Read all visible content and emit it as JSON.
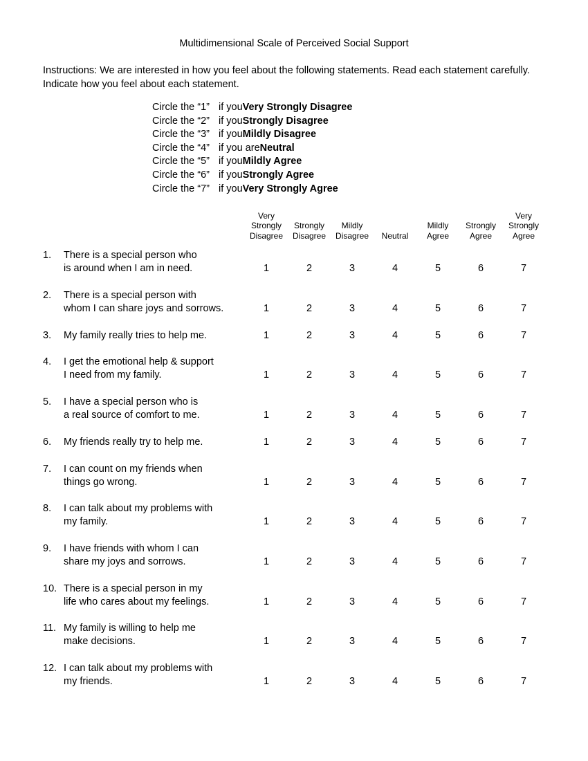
{
  "title": "Multidimensional Scale of Perceived Social Support",
  "instructions": "Instructions:  We are interested in how you feel about the following statements.  Read each statement carefully.   Indicate how you feel about each statement.",
  "legend": [
    {
      "left": "Circle the “1”",
      "mid": "if you ",
      "bold": "Very Strongly Disagree"
    },
    {
      "left": "Circle the “2”",
      "mid": "if you ",
      "bold": "Strongly Disagree"
    },
    {
      "left": "Circle the “3”",
      "mid": "if you ",
      "bold": "Mildly Disagree"
    },
    {
      "left": "Circle the “4”",
      "mid": "if you are ",
      "bold": "Neutral"
    },
    {
      "left": "Circle the “5”",
      "mid": "if you ",
      "bold": "Mildly Agree"
    },
    {
      "left": "Circle the “6”",
      "mid": "if you ",
      "bold": "Strongly Agree"
    },
    {
      "left": "Circle the “7”",
      "mid": "if you ",
      "bold": "Very Strongly Agree"
    }
  ],
  "columns": [
    "Very\nStrongly\nDisagree",
    "Strongly\nDisagree",
    "Mildly\nDisagree",
    "Neutral",
    "Mildly\nAgree",
    "Strongly\nAgree",
    "Very\nStrongly\nAgree"
  ],
  "scale_values": [
    "1",
    "2",
    "3",
    "4",
    "5",
    "6",
    "7"
  ],
  "items": [
    {
      "n": "1.",
      "text": "There is a special person who\n is around when I am in need."
    },
    {
      "n": "2.",
      "text": "There is a special person with\n whom I can share joys and sorrows."
    },
    {
      "n": "3.",
      "text": "My family really tries to help me."
    },
    {
      "n": "4.",
      "text": "I get the emotional help & support\nI need from my family."
    },
    {
      "n": "5.",
      "text": "I have a special person who is\na real source of comfort to me."
    },
    {
      "n": "6.",
      "text": "My friends really try to help me."
    },
    {
      "n": "7.",
      "text": "I can count on my friends when\nthings go wrong."
    },
    {
      "n": "8.",
      "text": "I can talk about my problems with\nmy family."
    },
    {
      "n": "9.",
      "text": "I have friends with whom I can\nshare my joys and sorrows."
    },
    {
      "n": "10.",
      "text": "There is a special person in my\nlife who cares about my feelings."
    },
    {
      "n": "11.",
      "text": "My family is willing to help me\nmake decisions."
    },
    {
      "n": "12.",
      "text": "I can talk about my problems with\nmy friends."
    }
  ]
}
